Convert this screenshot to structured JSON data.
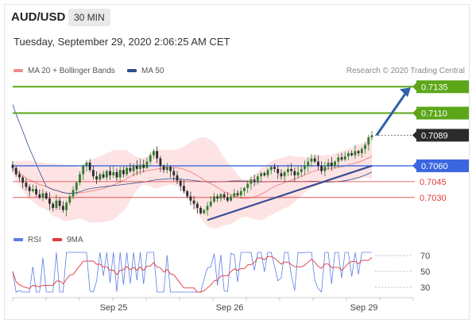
{
  "header": {
    "symbol": "AUD/USD",
    "timeframe": "30 MIN",
    "datetime": "Tuesday, September 29, 2020 2:06:25 AM CET"
  },
  "legend": {
    "ma20_bb": "MA 20 + Bollinger Bands",
    "ma50": "MA 50",
    "credit": "Research © 2020 Trading Central",
    "rsi": "RSI",
    "ma9": "9MA"
  },
  "colors": {
    "green": "#5ca619",
    "blue": "#3b66e0",
    "red": "#e03a3a",
    "dark": "#2b2b2b",
    "candle_up": "#2d7d2d",
    "candle_down": "#2b2b2b",
    "band_fill": "#fcd9d9",
    "ma20": "#f28b8b",
    "ma50": "#2e4d8f",
    "trend": "#3a4d93"
  },
  "chart_data": [
    {
      "type": "candlestick",
      "title": "AUD/USD",
      "x_ticks": [
        "Sep 25",
        "Sep 26",
        "Sep 29"
      ],
      "ylim": [
        0.7005,
        0.7142
      ],
      "levels": [
        {
          "label": "0.7135",
          "value": 0.7135,
          "kind": "resistance",
          "color": "#5ca619"
        },
        {
          "label": "0.7110",
          "value": 0.711,
          "kind": "resistance",
          "color": "#5ca619"
        },
        {
          "label": "0.7089",
          "value": 0.7089,
          "kind": "last_price",
          "color": "#2b2b2b"
        },
        {
          "label": "0.7060",
          "value": 0.706,
          "kind": "pivot",
          "color": "#3b66e0"
        },
        {
          "label": "0.7045",
          "value": 0.7045,
          "kind": "support",
          "color": "#e03a3a"
        },
        {
          "label": "0.7030",
          "value": 0.703,
          "kind": "support",
          "color": "#e03a3a"
        }
      ],
      "series": [
        {
          "name": "MA 20 + Bollinger Bands"
        },
        {
          "name": "MA 50"
        }
      ],
      "close": [
        0.7058,
        0.7052,
        0.7049,
        0.7044,
        0.704,
        0.7036,
        0.7038,
        0.7033,
        0.703,
        0.7034,
        0.7029,
        0.7024,
        0.702,
        0.7027,
        0.7022,
        0.7018,
        0.7025,
        0.7031,
        0.7037,
        0.7044,
        0.7052,
        0.706,
        0.7063,
        0.7056,
        0.705,
        0.7047,
        0.7052,
        0.7049,
        0.7055,
        0.7051,
        0.7054,
        0.7049,
        0.7056,
        0.7052,
        0.7058,
        0.7055,
        0.706,
        0.7057,
        0.7061,
        0.7058,
        0.7064,
        0.707,
        0.7074,
        0.7067,
        0.706,
        0.7056,
        0.7059,
        0.7055,
        0.7051,
        0.7046,
        0.7041,
        0.7036,
        0.7031,
        0.7027,
        0.7024,
        0.702,
        0.7015,
        0.7018,
        0.7022,
        0.7026,
        0.7031,
        0.7029,
        0.7033,
        0.703,
        0.7027,
        0.7031,
        0.7034,
        0.7032,
        0.7036,
        0.7039,
        0.7043,
        0.7047,
        0.7045,
        0.705,
        0.7053,
        0.7051,
        0.7056,
        0.7059,
        0.7057,
        0.7053,
        0.705,
        0.7054,
        0.7057,
        0.7055,
        0.7051,
        0.7054,
        0.7057,
        0.706,
        0.7064,
        0.7067,
        0.7064,
        0.706,
        0.7055,
        0.7059,
        0.7063,
        0.706,
        0.7064,
        0.7068,
        0.7066,
        0.7069,
        0.7072,
        0.707,
        0.7074,
        0.7072,
        0.7076,
        0.708,
        0.7087,
        0.7089
      ],
      "trendline": {
        "from": {
          "x_index": 58,
          "y": 0.7013
        },
        "to": {
          "x_index": 107,
          "y": 0.706
        }
      },
      "projection_arrow": {
        "from_y": 0.7089,
        "to_y": 0.7135
      }
    },
    {
      "type": "line",
      "title": "RSI",
      "x_ticks": [
        "Sep 25",
        "Sep 26",
        "Sep 29"
      ],
      "y_ticks": [
        30,
        50,
        70
      ],
      "ylim": [
        20,
        80
      ],
      "series": [
        {
          "name": "RSI",
          "color": "#5b7ee5"
        },
        {
          "name": "9MA",
          "color": "#e03a3a"
        }
      ]
    }
  ]
}
